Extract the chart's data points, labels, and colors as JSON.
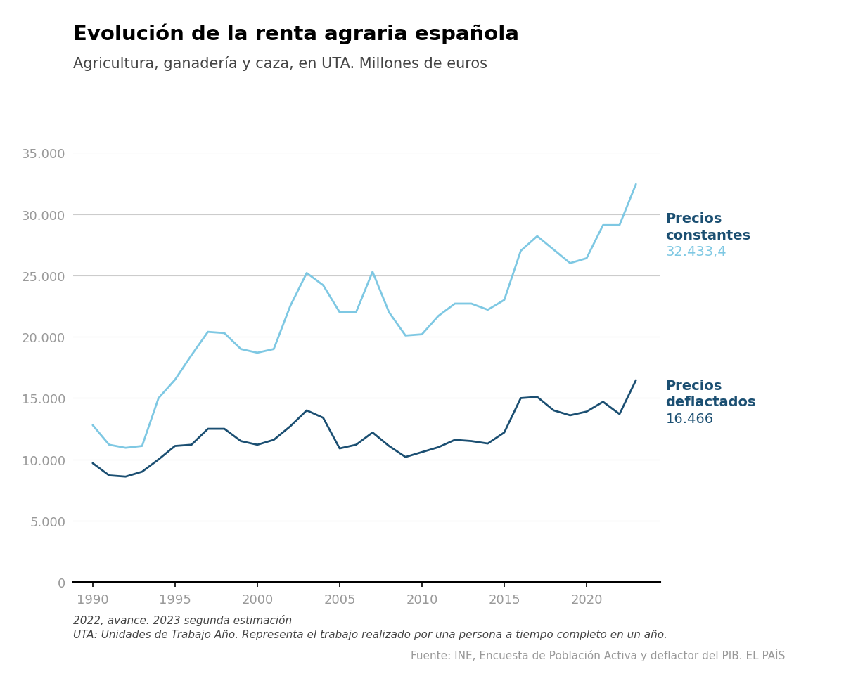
{
  "title": "Evolución de la renta agraria española",
  "subtitle": "Agricultura, ganadería y caza, en UTA. Millones de euros",
  "years": [
    1990,
    1991,
    1992,
    1993,
    1994,
    1995,
    1996,
    1997,
    1998,
    1999,
    2000,
    2001,
    2002,
    2003,
    2004,
    2005,
    2006,
    2007,
    2008,
    2009,
    2010,
    2011,
    2012,
    2013,
    2014,
    2015,
    2016,
    2017,
    2018,
    2019,
    2020,
    2021,
    2022,
    2023
  ],
  "precios_constantes": [
    12800,
    11200,
    10950,
    11100,
    15000,
    16500,
    18500,
    20400,
    20300,
    19000,
    18700,
    19000,
    22500,
    25200,
    24200,
    22000,
    22000,
    25300,
    22000,
    20100,
    20200,
    21700,
    22700,
    22700,
    22200,
    23000,
    27000,
    28200,
    27100,
    26000,
    26400,
    29100,
    29100,
    32433.4
  ],
  "precios_deflactados": [
    9700,
    8700,
    8600,
    9000,
    10000,
    11100,
    11200,
    12500,
    12500,
    11500,
    11200,
    11600,
    12700,
    14000,
    13400,
    10900,
    11200,
    12200,
    11100,
    10200,
    10600,
    11000,
    11600,
    11500,
    11300,
    12200,
    15000,
    15100,
    14000,
    13600,
    13900,
    14700,
    13700,
    16466
  ],
  "color_constantes": "#7EC8E3",
  "color_deflactados": "#1B4F72",
  "label_constantes_bold": "Precios\nconstantes",
  "label_deflactados_bold": "Precios\ndeflactados",
  "value_constantes": "32.433,4",
  "value_deflactados": "16.466",
  "ylim": [
    0,
    35000
  ],
  "yticks": [
    0,
    5000,
    10000,
    15000,
    20000,
    25000,
    30000,
    35000
  ],
  "xticks": [
    1990,
    1995,
    2000,
    2005,
    2010,
    2015,
    2020
  ],
  "footnote1": "2022, avance. 2023 segunda estimación",
  "footnote2": "UTA: Unidades de Trabajo Año. Representa el trabajo realizado por una persona a tiempo completo en un año.",
  "source": "Fuente: INE, Encuesta de Población Activa y deflactor del PIB. EL PAÍS",
  "bg_color": "#FFFFFF",
  "title_color": "#000000",
  "subtitle_color": "#444444",
  "grid_color": "#CCCCCC",
  "ytick_color": "#999999",
  "xtick_color": "#999999",
  "label_color": "#1B4F72",
  "value_color_constantes": "#7EC8E3",
  "value_color_deflactados": "#1B4F72"
}
